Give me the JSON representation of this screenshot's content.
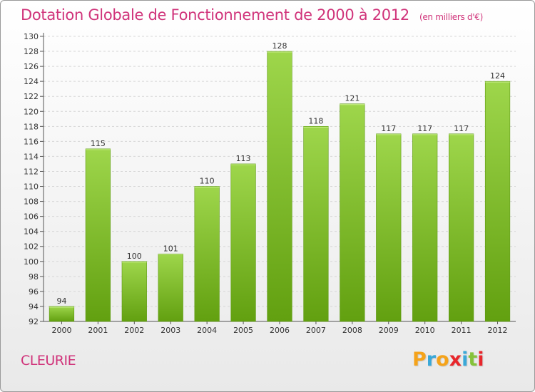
{
  "header": {
    "title": "Dotation Globale de Fonctionnement de 2000 à 2012",
    "subtitle": "(en milliers d'€)"
  },
  "footer": {
    "commune": "CLEURIE",
    "logo": [
      "P",
      "r",
      "o",
      "x",
      "i",
      "t",
      "i"
    ]
  },
  "colors": {
    "title": "#d0337a",
    "bar_light": "#9ed64b",
    "bar_dark": "#62a010",
    "logo": [
      "#f5a31a",
      "#3aa8d8",
      "#f5a31a",
      "#e8262b",
      "#3aa8d8",
      "#86c23a",
      "#e8262b"
    ]
  },
  "chart_data": {
    "type": "bar",
    "categories": [
      "2000",
      "2001",
      "2002",
      "2003",
      "2004",
      "2005",
      "2006",
      "2007",
      "2008",
      "2009",
      "2010",
      "2011",
      "2012"
    ],
    "values": [
      94,
      115,
      100,
      101,
      110,
      113,
      128,
      118,
      121,
      117,
      117,
      117,
      124
    ],
    "ylim": [
      92,
      130
    ],
    "yticks": [
      92,
      94,
      96,
      98,
      100,
      102,
      104,
      106,
      108,
      110,
      112,
      114,
      116,
      118,
      120,
      122,
      124,
      126,
      128,
      130
    ],
    "grid": true
  }
}
